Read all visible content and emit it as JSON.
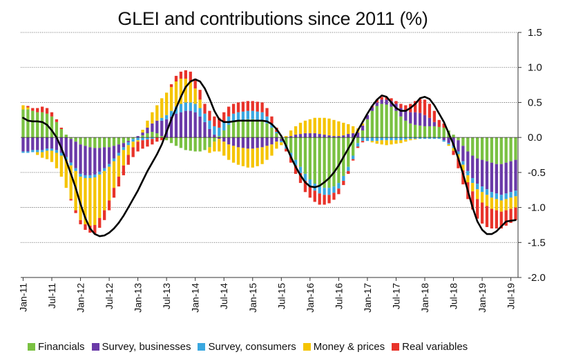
{
  "chart_data": {
    "type": "bar",
    "subtype": "stacked bar with line overlay",
    "title": "GLEI and contributions since 2011 (%)",
    "xlabel": "",
    "ylabel": "",
    "ylim": [
      -2.0,
      1.5
    ],
    "y_ticks": [
      "1.5",
      "1.0",
      "0.5",
      "0.0",
      "-0.5",
      "-1.0",
      "-1.5",
      "-2.0"
    ],
    "y_axis_position": "right",
    "grid": "horizontal dotted",
    "legend_position": "bottom",
    "x_ticks": [
      {
        "label": "Jan-11",
        "index": 0
      },
      {
        "label": "Jul-11",
        "index": 6
      },
      {
        "label": "Jan-12",
        "index": 12
      },
      {
        "label": "Jul-12",
        "index": 18
      },
      {
        "label": "Jan-13",
        "index": 24
      },
      {
        "label": "Jul-13",
        "index": 30
      },
      {
        "label": "Jan-14",
        "index": 36
      },
      {
        "label": "Jul-14",
        "index": 42
      },
      {
        "label": "Jan-15",
        "index": 48
      },
      {
        "label": "Jul-15",
        "index": 54
      },
      {
        "label": "Jan-16",
        "index": 60
      },
      {
        "label": "Jul-16",
        "index": 66
      },
      {
        "label": "Jan-17",
        "index": 72
      },
      {
        "label": "Jul-17",
        "index": 78
      },
      {
        "label": "Jan-18",
        "index": 84
      },
      {
        "label": "Jul-18",
        "index": 90
      },
      {
        "label": "Jan-19",
        "index": 96
      },
      {
        "label": "Jul-19",
        "index": 102
      }
    ],
    "series": [
      {
        "name": "Financials",
        "color": "#7ac142",
        "values": [
          0.4,
          0.4,
          0.38,
          0.36,
          0.36,
          0.34,
          0.3,
          0.22,
          0.12,
          0.04,
          -0.02,
          -0.06,
          -0.1,
          -0.12,
          -0.14,
          -0.15,
          -0.15,
          -0.14,
          -0.14,
          -0.12,
          -0.1,
          -0.08,
          -0.05,
          -0.02,
          0.0,
          0.03,
          0.06,
          0.08,
          0.06,
          0.02,
          -0.04,
          -0.08,
          -0.12,
          -0.15,
          -0.18,
          -0.19,
          -0.2,
          -0.2,
          -0.18,
          -0.14,
          -0.06,
          0.02,
          0.1,
          0.18,
          0.22,
          0.24,
          0.25,
          0.26,
          0.26,
          0.25,
          0.24,
          0.2,
          0.14,
          0.06,
          -0.02,
          -0.12,
          -0.22,
          -0.32,
          -0.42,
          -0.52,
          -0.6,
          -0.66,
          -0.7,
          -0.72,
          -0.72,
          -0.7,
          -0.65,
          -0.55,
          -0.42,
          -0.26,
          -0.08,
          0.1,
          0.26,
          0.38,
          0.45,
          0.48,
          0.47,
          0.44,
          0.38,
          0.3,
          0.24,
          0.2,
          0.18,
          0.17,
          0.16,
          0.16,
          0.16,
          0.15,
          0.14,
          0.1,
          0.04,
          -0.04,
          -0.12,
          -0.2,
          -0.26,
          -0.3,
          -0.32,
          -0.34,
          -0.36,
          -0.38,
          -0.38,
          -0.36,
          -0.34,
          -0.32
        ]
      },
      {
        "name": "Survey, businesses",
        "color": "#6a3aa8",
        "values": [
          -0.2,
          -0.2,
          -0.18,
          -0.18,
          -0.18,
          -0.16,
          -0.16,
          -0.18,
          -0.22,
          -0.28,
          -0.34,
          -0.38,
          -0.42,
          -0.42,
          -0.4,
          -0.38,
          -0.34,
          -0.3,
          -0.24,
          -0.18,
          -0.12,
          -0.06,
          -0.02,
          0.0,
          0.02,
          0.04,
          0.08,
          0.12,
          0.18,
          0.22,
          0.26,
          0.3,
          0.34,
          0.36,
          0.38,
          0.38,
          0.36,
          0.3,
          0.22,
          0.12,
          0.04,
          -0.02,
          -0.06,
          -0.1,
          -0.12,
          -0.14,
          -0.15,
          -0.16,
          -0.16,
          -0.15,
          -0.14,
          -0.12,
          -0.1,
          -0.06,
          -0.03,
          0.0,
          0.02,
          0.04,
          0.05,
          0.06,
          0.06,
          0.06,
          0.05,
          0.04,
          0.03,
          0.02,
          0.02,
          0.03,
          0.05,
          0.06,
          0.07,
          0.07,
          0.06,
          0.05,
          0.05,
          0.06,
          0.07,
          0.08,
          0.1,
          0.12,
          0.14,
          0.16,
          0.18,
          0.18,
          0.16,
          0.12,
          0.06,
          0.0,
          -0.04,
          -0.08,
          -0.12,
          -0.16,
          -0.22,
          -0.28,
          -0.32,
          -0.36,
          -0.38,
          -0.4,
          -0.42,
          -0.42,
          -0.44,
          -0.44,
          -0.44,
          -0.44
        ]
      },
      {
        "name": "Survey, consumers",
        "color": "#3aa8e0",
        "values": [
          -0.02,
          -0.02,
          -0.03,
          -0.03,
          -0.03,
          -0.03,
          -0.03,
          -0.04,
          -0.04,
          -0.04,
          -0.04,
          -0.04,
          -0.04,
          -0.04,
          -0.04,
          -0.04,
          -0.04,
          -0.04,
          -0.04,
          -0.04,
          -0.04,
          -0.04,
          -0.04,
          -0.04,
          -0.04,
          -0.04,
          -0.03,
          -0.02,
          0.0,
          0.04,
          0.06,
          0.08,
          0.1,
          0.12,
          0.12,
          0.12,
          0.12,
          0.12,
          0.12,
          0.12,
          0.12,
          0.12,
          0.12,
          0.12,
          0.12,
          0.12,
          0.12,
          0.12,
          0.12,
          0.12,
          0.12,
          0.1,
          0.06,
          0.02,
          -0.02,
          -0.04,
          -0.06,
          -0.08,
          -0.09,
          -0.1,
          -0.1,
          -0.1,
          -0.1,
          -0.1,
          -0.1,
          -0.09,
          -0.08,
          -0.07,
          -0.06,
          -0.05,
          -0.05,
          -0.05,
          -0.05,
          -0.05,
          -0.05,
          -0.04,
          -0.04,
          -0.04,
          -0.04,
          -0.04,
          -0.03,
          -0.02,
          -0.02,
          -0.02,
          -0.02,
          -0.02,
          -0.02,
          -0.02,
          -0.02,
          -0.02,
          -0.03,
          -0.04,
          -0.05,
          -0.06,
          -0.07,
          -0.08,
          -0.08,
          -0.08,
          -0.08,
          -0.08,
          -0.08,
          -0.08,
          -0.08,
          -0.08
        ]
      },
      {
        "name": "Money & prices",
        "color": "#f5c400",
        "values": [
          0.06,
          0.03,
          0.0,
          -0.04,
          -0.08,
          -0.12,
          -0.16,
          -0.22,
          -0.3,
          -0.4,
          -0.48,
          -0.56,
          -0.62,
          -0.66,
          -0.68,
          -0.68,
          -0.62,
          -0.56,
          -0.48,
          -0.38,
          -0.3,
          -0.22,
          -0.14,
          -0.08,
          -0.02,
          0.04,
          0.1,
          0.16,
          0.22,
          0.28,
          0.32,
          0.34,
          0.36,
          0.36,
          0.34,
          0.3,
          0.22,
          0.12,
          0.0,
          -0.08,
          -0.14,
          -0.18,
          -0.2,
          -0.22,
          -0.24,
          -0.25,
          -0.26,
          -0.27,
          -0.27,
          -0.26,
          -0.24,
          -0.2,
          -0.16,
          -0.1,
          -0.04,
          0.02,
          0.08,
          0.12,
          0.16,
          0.18,
          0.2,
          0.22,
          0.23,
          0.24,
          0.24,
          0.23,
          0.21,
          0.18,
          0.14,
          0.1,
          0.06,
          0.03,
          0.0,
          -0.02,
          -0.04,
          -0.06,
          -0.07,
          -0.06,
          -0.05,
          -0.04,
          -0.03,
          -0.02,
          -0.01,
          0.0,
          0.0,
          0.0,
          0.0,
          0.0,
          0.0,
          -0.02,
          -0.04,
          -0.06,
          -0.08,
          -0.1,
          -0.12,
          -0.14,
          -0.15,
          -0.16,
          -0.16,
          -0.16,
          -0.16,
          -0.16,
          -0.16,
          -0.16
        ]
      },
      {
        "name": "Real variables",
        "color": "#e8332a",
        "values": [
          0.0,
          0.02,
          0.04,
          0.06,
          0.08,
          0.08,
          0.06,
          0.04,
          0.02,
          0.0,
          -0.02,
          -0.04,
          -0.06,
          -0.08,
          -0.1,
          -0.12,
          -0.14,
          -0.14,
          -0.14,
          -0.14,
          -0.14,
          -0.14,
          -0.14,
          -0.14,
          -0.14,
          -0.12,
          -0.1,
          -0.08,
          -0.06,
          -0.04,
          0.0,
          0.04,
          0.08,
          0.1,
          0.12,
          0.14,
          0.14,
          0.14,
          0.14,
          0.14,
          0.14,
          0.14,
          0.14,
          0.14,
          0.14,
          0.14,
          0.14,
          0.14,
          0.14,
          0.14,
          0.14,
          0.12,
          0.1,
          0.06,
          0.0,
          -0.04,
          -0.08,
          -0.12,
          -0.14,
          -0.16,
          -0.16,
          -0.16,
          -0.16,
          -0.14,
          -0.12,
          -0.1,
          -0.08,
          -0.06,
          -0.04,
          -0.02,
          -0.02,
          -0.02,
          0.0,
          0.02,
          0.04,
          0.04,
          0.04,
          0.04,
          0.04,
          0.06,
          0.08,
          0.12,
          0.16,
          0.2,
          0.22,
          0.2,
          0.16,
          0.1,
          0.06,
          0.0,
          -0.06,
          -0.14,
          -0.2,
          -0.24,
          -0.26,
          -0.28,
          -0.3,
          -0.3,
          -0.28,
          -0.26,
          -0.24,
          -0.22,
          -0.2,
          -0.18
        ]
      },
      {
        "name": "GLEI",
        "render": "line",
        "color": "#000000",
        "values": [
          0.28,
          0.24,
          0.23,
          0.23,
          0.22,
          0.18,
          0.1,
          0.0,
          -0.15,
          -0.33,
          -0.52,
          -0.72,
          -0.95,
          -1.15,
          -1.3,
          -1.38,
          -1.41,
          -1.4,
          -1.36,
          -1.3,
          -1.22,
          -1.12,
          -1.0,
          -0.88,
          -0.76,
          -0.62,
          -0.48,
          -0.36,
          -0.24,
          -0.1,
          0.08,
          0.26,
          0.42,
          0.58,
          0.72,
          0.8,
          0.83,
          0.8,
          0.7,
          0.55,
          0.38,
          0.26,
          0.22,
          0.22,
          0.23,
          0.24,
          0.24,
          0.24,
          0.24,
          0.24,
          0.24,
          0.23,
          0.19,
          0.12,
          0.02,
          -0.12,
          -0.28,
          -0.42,
          -0.54,
          -0.64,
          -0.7,
          -0.71,
          -0.69,
          -0.64,
          -0.58,
          -0.5,
          -0.4,
          -0.28,
          -0.16,
          -0.04,
          0.1,
          0.22,
          0.34,
          0.45,
          0.54,
          0.6,
          0.58,
          0.5,
          0.42,
          0.38,
          0.38,
          0.42,
          0.48,
          0.56,
          0.58,
          0.55,
          0.46,
          0.34,
          0.22,
          0.06,
          -0.1,
          -0.3,
          -0.52,
          -0.76,
          -1.0,
          -1.2,
          -1.32,
          -1.38,
          -1.38,
          -1.34,
          -1.27,
          -1.2,
          -1.19,
          -1.18
        ]
      }
    ]
  }
}
